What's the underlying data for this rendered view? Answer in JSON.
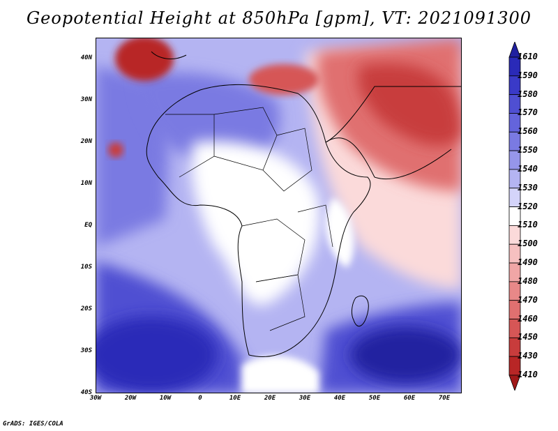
{
  "title": "Geopotential Height at 850hPa [gpm], VT: 2021091300",
  "credit": "GrADS: IGES/COLA",
  "map": {
    "lon_range": [
      -30,
      75
    ],
    "lat_range": [
      -40,
      45
    ],
    "lat_ticks": [
      "40N",
      "30N",
      "20N",
      "10N",
      "EQ",
      "10S",
      "20S",
      "30S",
      "40S"
    ],
    "lat_values": [
      40,
      30,
      20,
      10,
      0,
      -10,
      -20,
      -30,
      -40
    ],
    "lon_ticks": [
      "30W",
      "20W",
      "10W",
      "0",
      "10E",
      "20E",
      "30E",
      "40E",
      "50E",
      "60E",
      "70E"
    ],
    "lon_values": [
      -30,
      -20,
      -10,
      0,
      10,
      20,
      30,
      40,
      50,
      60,
      70
    ]
  },
  "colorbar": {
    "labels": [
      "1610",
      "1590",
      "1580",
      "1570",
      "1560",
      "1550",
      "1540",
      "1530",
      "1520",
      "1510",
      "1500",
      "1490",
      "1480",
      "1470",
      "1460",
      "1450",
      "1430",
      "1410"
    ],
    "colors": [
      "#2020a0",
      "#2a2ab8",
      "#3a3ac8",
      "#4f4fd2",
      "#6464dc",
      "#7a7ae2",
      "#9696ea",
      "#b4b4f2",
      "#d4d4fa",
      "#ffffff",
      "#fbdada",
      "#f6c0c0",
      "#f0a6a6",
      "#e88888",
      "#e07070",
      "#d65656",
      "#c83c3c",
      "#b82626",
      "#a01818"
    ]
  },
  "field_regions": [
    {
      "name": "background-mid-blue",
      "level": "1530",
      "color": "#b4b4f2"
    },
    {
      "name": "sahara-blue",
      "level": "1550",
      "color": "#7a7ae2"
    },
    {
      "name": "central-africa-white",
      "level": "1510",
      "color": "#ffffff"
    },
    {
      "name": "east-pink",
      "level": "1500",
      "color": "#fbdada"
    },
    {
      "name": "arabia-red",
      "level": "1470",
      "color": "#e07070"
    },
    {
      "name": "iran-dark-red",
      "level": "1450",
      "color": "#c83c3c"
    },
    {
      "name": "mediterranean-red",
      "level": "1460",
      "color": "#d65656"
    },
    {
      "name": "iberia-low",
      "level": "1430",
      "color": "#b82626"
    },
    {
      "name": "cape-verde-low",
      "level": "1450",
      "color": "#c83c3c"
    },
    {
      "name": "south-atlantic-high",
      "level": "1590",
      "color": "#2a2ab8"
    },
    {
      "name": "south-indian-high",
      "level": "1610",
      "color": "#2020a0"
    }
  ]
}
